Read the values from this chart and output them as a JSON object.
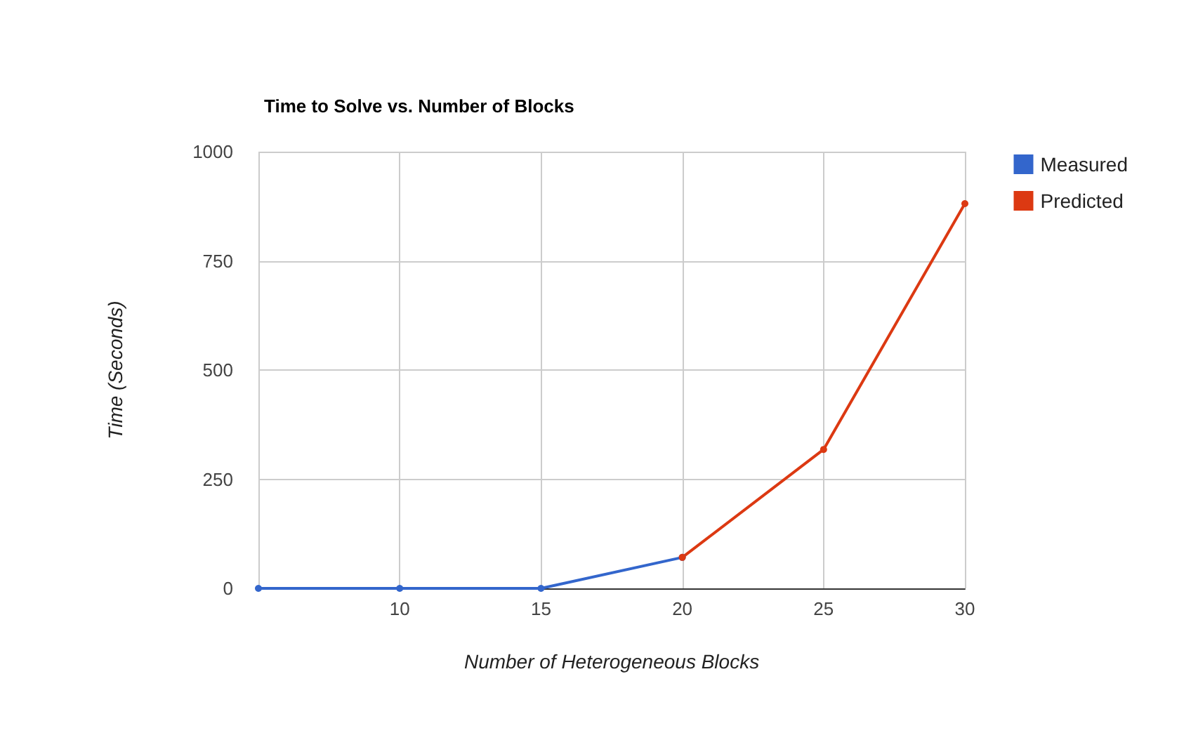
{
  "chart_data": {
    "type": "line",
    "title": "Time to Solve vs. Number of Blocks",
    "xlabel": "Number of Heterogeneous Blocks",
    "ylabel": "Time (Seconds)",
    "series": [
      {
        "name": "Measured",
        "color": "#3366cc",
        "x": [
          5,
          10,
          15,
          20
        ],
        "values": [
          0,
          0,
          0,
          71
        ]
      },
      {
        "name": "Predicted",
        "color": "#dc3912",
        "x": [
          20,
          25,
          30
        ],
        "values": [
          71,
          318,
          881
        ]
      }
    ],
    "xlim": [
      5,
      30
    ],
    "xticks": [
      {
        "value": 5,
        "label": null
      },
      10,
      15,
      20,
      25,
      30
    ],
    "ylim": [
      0,
      1000
    ],
    "yticks": [
      0,
      250,
      500,
      750,
      1000
    ],
    "grid": true,
    "legend": "top right",
    "marker": "circle",
    "line_style": "solid"
  }
}
